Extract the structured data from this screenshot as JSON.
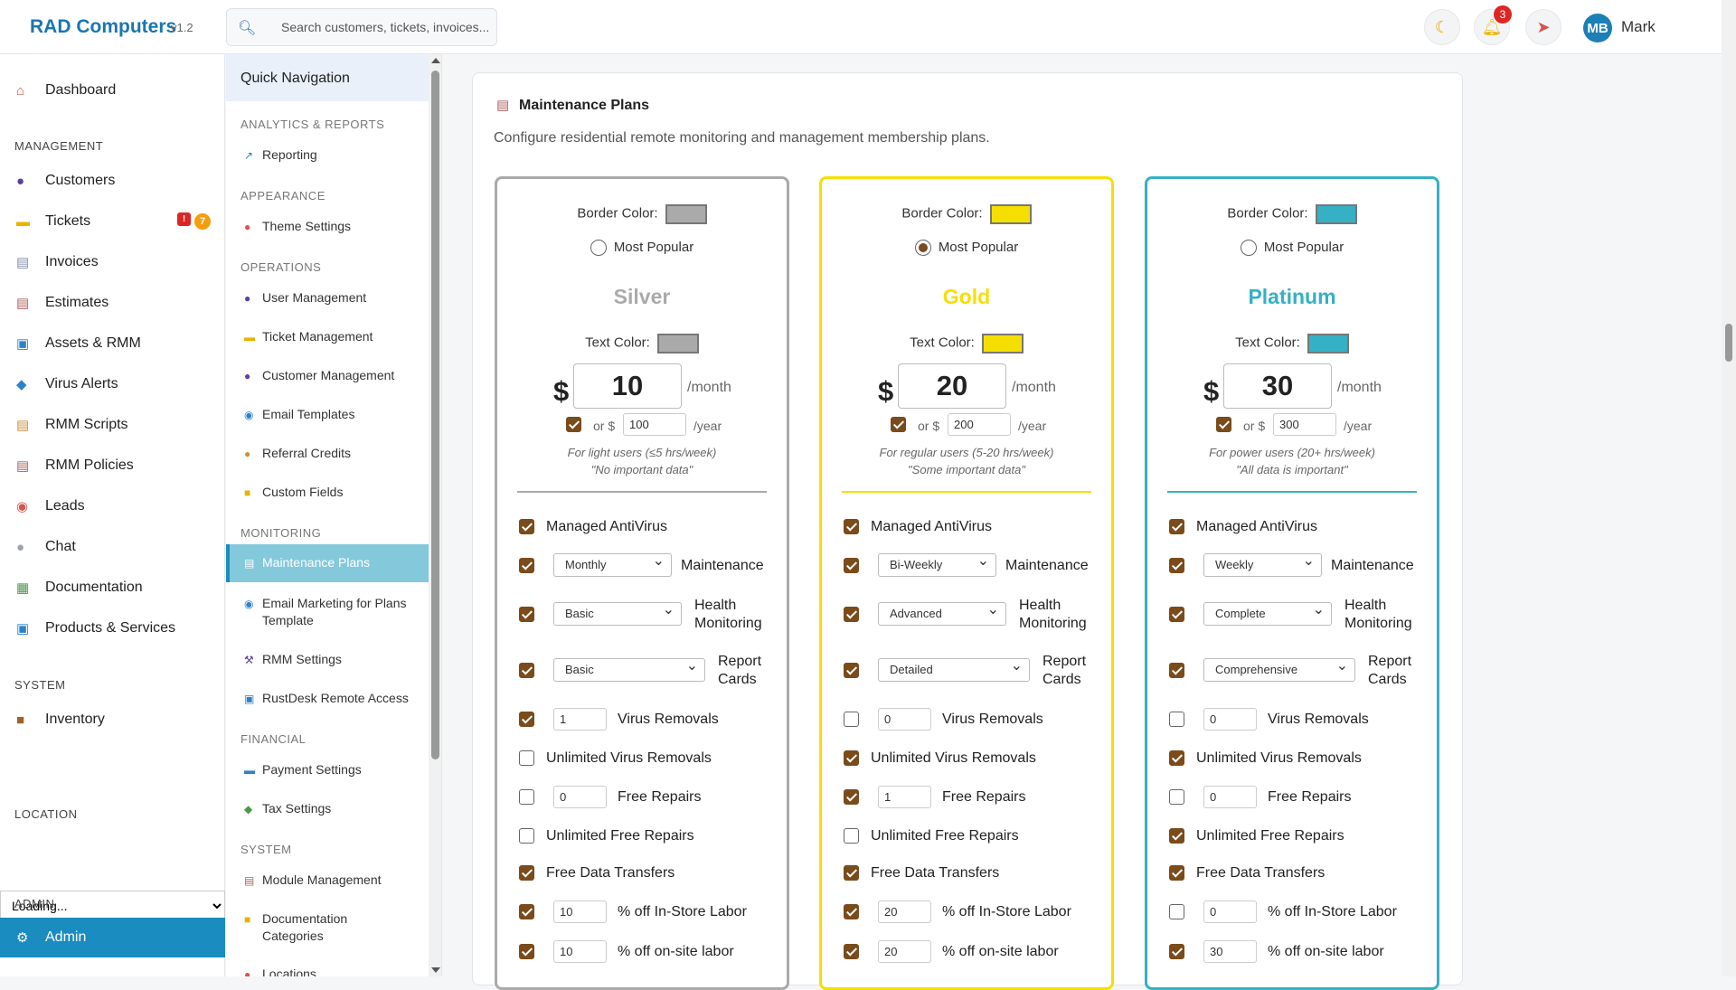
{
  "app": {
    "brand": "RAD Computers",
    "version": "v1.2"
  },
  "search": {
    "placeholder": "Search customers, tickets, invoices..."
  },
  "header": {
    "notif_count": "3",
    "avatar_initials": "MB",
    "user_name": "Mark"
  },
  "sidebar": {
    "dashboard": "Dashboard",
    "management_label": "MANAGEMENT",
    "items": [
      "Customers",
      "Tickets",
      "Invoices",
      "Estimates",
      "Assets & RMM",
      "Virus Alerts",
      "RMM Scripts",
      "RMM Policies",
      "Leads",
      "Chat",
      "Documentation",
      "Products & Services"
    ],
    "tickets_alert": "!",
    "tickets_count": "7",
    "system_label": "SYSTEM",
    "inventory": "Inventory",
    "location_label": "LOCATION",
    "location_value": "Loading...",
    "admin_label": "ADMIN",
    "admin": "Admin"
  },
  "quicknav": {
    "title": "Quick Navigation",
    "sections": {
      "analytics": "ANALYTICS & REPORTS",
      "appearance": "APPEARANCE",
      "operations": "OPERATIONS",
      "monitoring": "MONITORING",
      "financial": "FINANCIAL",
      "system": "SYSTEM"
    },
    "items": {
      "reporting": "Reporting",
      "theme": "Theme Settings",
      "users": "User Management",
      "tickets": "Ticket Management",
      "customers": "Customer Management",
      "email_templates": "Email Templates",
      "referral": "Referral Credits",
      "custom_fields": "Custom Fields",
      "maintenance": "Maintenance Plans",
      "email_marketing": "Email Marketing for Plans Template",
      "rmm_settings": "RMM Settings",
      "rustdesk": "RustDesk Remote Access",
      "payment": "Payment Settings",
      "tax": "Tax Settings",
      "modules": "Module Management",
      "doc_categories": "Documentation Categories",
      "locations": "Locations"
    }
  },
  "page": {
    "title": "Maintenance Plans",
    "description": "Configure residential remote monitoring and management membership plans.",
    "labels": {
      "border_color": "Border Color:",
      "most_popular": "Most Popular",
      "text_color": "Text Color:",
      "dollar": "$",
      "month": "/month",
      "or": "or $",
      "year": "/year",
      "antivirus": "Managed AntiVirus",
      "maintenance": "Maintenance",
      "health": "Health Monitoring",
      "report": "Report Cards",
      "virus_removals": "Virus Removals",
      "unlimited_virus": "Unlimited Virus Removals",
      "free_repairs": "Free Repairs",
      "unlimited_repairs": "Unlimited Free Repairs",
      "data_transfers": "Free Data Transfers",
      "instore": "% off In-Store Labor",
      "onsite": "% off on-site labor"
    }
  },
  "plans": [
    {
      "name": "Silver",
      "color": "#aaaaaa",
      "most_popular": false,
      "price_month": "10",
      "yearly_enabled": true,
      "price_year": "100",
      "desc_line1": "For light users (≤5 hrs/week)",
      "desc_line2": "\"No important data\"",
      "antivirus": true,
      "maintenance_enabled": true,
      "maintenance": "Monthly",
      "health_enabled": true,
      "health": "Basic",
      "report_enabled": true,
      "report": "Basic",
      "virus_removals_enabled": true,
      "virus_removals": "1",
      "unlimited_virus": false,
      "free_repairs_enabled": false,
      "free_repairs": "0",
      "unlimited_repairs": false,
      "data_transfers": true,
      "instore_enabled": true,
      "instore": "10",
      "onsite_enabled": true,
      "onsite": "10"
    },
    {
      "name": "Gold",
      "color": "#f5df00",
      "most_popular": true,
      "price_month": "20",
      "yearly_enabled": true,
      "price_year": "200",
      "desc_line1": "For regular users (5-20 hrs/week)",
      "desc_line2": "\"Some important data\"",
      "antivirus": true,
      "maintenance_enabled": true,
      "maintenance": "Bi-Weekly",
      "health_enabled": true,
      "health": "Advanced",
      "report_enabled": true,
      "report": "Detailed",
      "virus_removals_enabled": false,
      "virus_removals": "0",
      "unlimited_virus": true,
      "free_repairs_enabled": true,
      "free_repairs": "1",
      "unlimited_repairs": false,
      "data_transfers": true,
      "instore_enabled": true,
      "instore": "20",
      "onsite_enabled": true,
      "onsite": "20"
    },
    {
      "name": "Platinum",
      "color": "#35b0c4",
      "most_popular": false,
      "price_month": "30",
      "yearly_enabled": true,
      "price_year": "300",
      "desc_line1": "For power users (20+ hrs/week)",
      "desc_line2": "\"All data is important\"",
      "antivirus": true,
      "maintenance_enabled": true,
      "maintenance": "Weekly",
      "health_enabled": true,
      "health": "Complete",
      "report_enabled": true,
      "report": "Comprehensive",
      "virus_removals_enabled": false,
      "virus_removals": "0",
      "unlimited_virus": true,
      "free_repairs_enabled": false,
      "free_repairs": "0",
      "unlimited_repairs": true,
      "data_transfers": true,
      "instore_enabled": false,
      "instore": "0",
      "onsite_enabled": true,
      "onsite": "30"
    }
  ]
}
